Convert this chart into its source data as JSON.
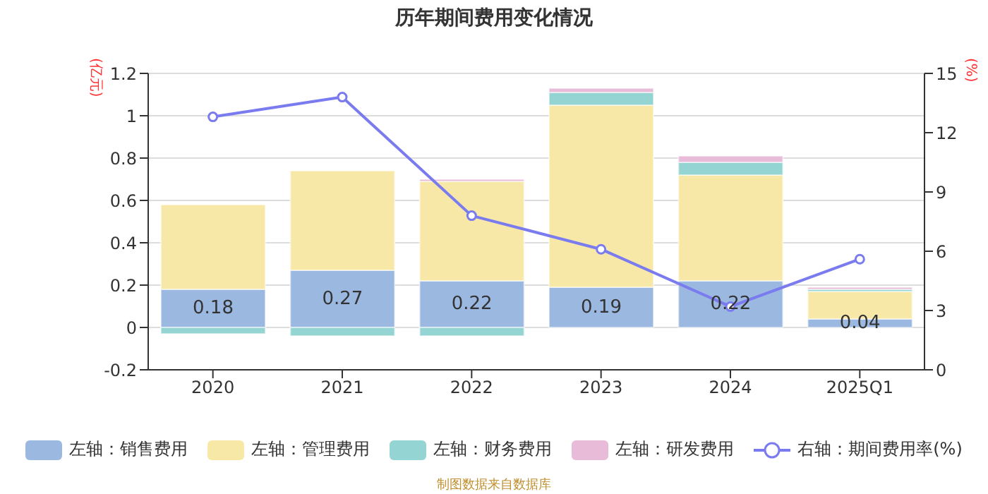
{
  "chart_data": {
    "type": "bar",
    "title": "历年期间费用变化情况",
    "ylabel": "(亿元)",
    "y2label": "(%)",
    "categories": [
      "2020",
      "2021",
      "2022",
      "2023",
      "2024",
      "2025Q1"
    ],
    "stacked": true,
    "series": [
      {
        "name": "左轴：销售费用",
        "color": "#9bb8e0",
        "values": [
          0.18,
          0.27,
          0.22,
          0.19,
          0.22,
          0.04
        ],
        "value_labels": [
          "0.18",
          "0.27",
          "0.22",
          "0.19",
          "0.22",
          "0.04"
        ]
      },
      {
        "name": "左轴：管理费用",
        "color": "#f8e8a8",
        "values": [
          0.4,
          0.47,
          0.47,
          0.86,
          0.5,
          0.13
        ]
      },
      {
        "name": "左轴：财务费用",
        "color": "#94d4d2",
        "values": [
          -0.03,
          -0.04,
          -0.04,
          0.06,
          0.06,
          0.01
        ]
      },
      {
        "name": "左轴：研发费用",
        "color": "#e8bcd8",
        "values": [
          0,
          0,
          0.01,
          0.02,
          0.03,
          0.01
        ]
      },
      {
        "name": "右轴：期间费用率(%)",
        "type": "line",
        "axis": "y2",
        "color": "#7b7bf0",
        "marker": "circle",
        "values": [
          12.8,
          13.8,
          7.8,
          6.1,
          3.2,
          5.6
        ]
      }
    ],
    "ylim": [
      -0.2,
      1.2
    ],
    "yticks": [
      -0.2,
      0,
      0.2,
      0.4,
      0.6,
      0.8,
      1,
      1.2
    ],
    "y2lim": [
      0,
      15
    ],
    "y2ticks": [
      0,
      3,
      6,
      9,
      12,
      15
    ],
    "grid": "y",
    "legend": "bottom",
    "annotations": [
      "制图数据来自数据库"
    ]
  }
}
